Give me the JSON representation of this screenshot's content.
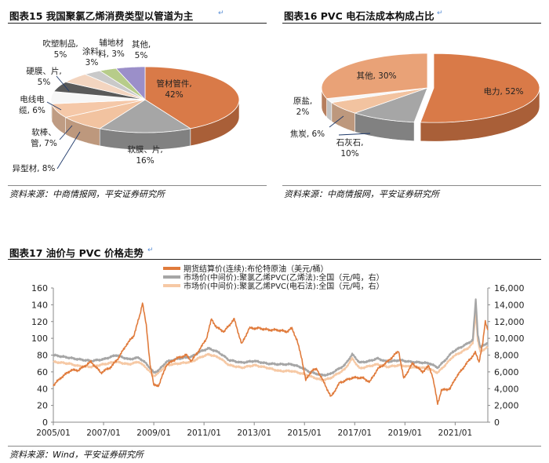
{
  "figure15": {
    "title": "图表15   我国聚氯乙烯消费类型以管道为主",
    "source": "资料来源：中商情报网，平安证券研究所",
    "chart_data": {
      "type": "pie",
      "slices": [
        {
          "name": "管材管件",
          "value": 42,
          "color": "#d97a48",
          "label": [
            "管材管件,",
            "42%"
          ]
        },
        {
          "name": "软膜、片",
          "value": 16,
          "color": "#a6a6a6",
          "label": [
            "软膜、片,",
            "16%"
          ]
        },
        {
          "name": "异型材",
          "value": 8,
          "color": "#f2c3a0",
          "label": [
            "异型材, 8%"
          ]
        },
        {
          "name": "软棒、管",
          "value": 7,
          "color": "#f5c8a8",
          "label": [
            "软棒、",
            "管, 7%"
          ]
        },
        {
          "name": "电线电缆",
          "value": 6,
          "color": "#f7f7f7",
          "label": [
            "电线电",
            "缆, 6%"
          ]
        },
        {
          "name": "硬膜、片",
          "value": 5,
          "color": "#5a5a5a",
          "label": [
            "硬膜、片,",
            "5%"
          ]
        },
        {
          "name": "吹塑制品",
          "value": 5,
          "color": "#f3d5c0",
          "label": [
            "吹塑制品,",
            "5%"
          ]
        },
        {
          "name": "涂料",
          "value": 3,
          "color": "#c9c9c9",
          "label": [
            "涂料,",
            "3%"
          ]
        },
        {
          "name": "辅地材料",
          "value": 3,
          "color": "#b7cc8a",
          "label": [
            "辅地材",
            "料, 3%"
          ]
        },
        {
          "name": "其他",
          "value": 5,
          "color": "#9b8fc9",
          "label": [
            "其他,",
            "5%"
          ]
        }
      ]
    }
  },
  "figure16": {
    "title": "图表16   PVC 电石法成本构成占比",
    "source": "资料来源：中商情报网，平安证券研究所",
    "chart_data": {
      "type": "pie",
      "slices": [
        {
          "name": "电力",
          "value": 52,
          "color": "#d97a48",
          "label": [
            "电力, 52%"
          ]
        },
        {
          "name": "石灰石",
          "value": 10,
          "color": "#a6a6a6",
          "label": [
            "石灰石,",
            "10%"
          ]
        },
        {
          "name": "焦炭",
          "value": 6,
          "color": "#f2c3a0",
          "label": [
            "焦炭, 6%"
          ]
        },
        {
          "name": "原盐",
          "value": 2,
          "color": "#f7f7f7",
          "label": [
            "原盐,",
            "2%"
          ]
        },
        {
          "name": "其他",
          "value": 30,
          "color": "#e9a277",
          "label": [
            "其他, 30%"
          ]
        }
      ]
    }
  },
  "figure17": {
    "title": "图表17   油价与 PVC 价格走势",
    "source": "资料来源：Wind，平安证券研究所",
    "chart_data": {
      "type": "line",
      "legend": [
        {
          "name": "期货结算价(连续):布伦特原油（美元/桶）",
          "color": "#e07b3c",
          "axis": "left"
        },
        {
          "name": "市场价(中间价):聚氯乙烯PVC(乙烯法):全国（元/吨，右）",
          "color": "#a6a6a6",
          "axis": "right"
        },
        {
          "name": "市场价(中间价):聚氯乙烯PVC(电石法):全国（元/吨，右）",
          "color": "#f6c9a5",
          "axis": "right"
        }
      ],
      "x_ticks": [
        "2005/01",
        "2007/01",
        "2009/01",
        "2011/01",
        "2013/01",
        "2015/01",
        "2017/01",
        "2019/01",
        "2021/01"
      ],
      "x_range": [
        2005.0,
        2022.3
      ],
      "y_left": {
        "range": [
          0,
          160
        ],
        "ticks": [
          "0",
          "20",
          "40",
          "60",
          "80",
          "100",
          "120",
          "140",
          "160"
        ]
      },
      "y_right": {
        "range": [
          0,
          16000
        ],
        "ticks": [
          "0",
          "2,000",
          "4,000",
          "6,000",
          "8,000",
          "10,000",
          "12,000",
          "14,000",
          "16,000"
        ]
      },
      "series": [
        {
          "name": "布伦特原油",
          "axis": "left",
          "color": "#e07b3c",
          "points": [
            [
              2005.0,
              44
            ],
            [
              2005.3,
              53
            ],
            [
              2005.7,
              62
            ],
            [
              2006.0,
              62
            ],
            [
              2006.5,
              72
            ],
            [
              2006.9,
              59
            ],
            [
              2007.3,
              66
            ],
            [
              2007.6,
              77
            ],
            [
              2007.9,
              92
            ],
            [
              2008.2,
              103
            ],
            [
              2008.45,
              128
            ],
            [
              2008.55,
              143
            ],
            [
              2008.7,
              115
            ],
            [
              2008.85,
              70
            ],
            [
              2009.0,
              44
            ],
            [
              2009.2,
              44
            ],
            [
              2009.5,
              68
            ],
            [
              2009.9,
              76
            ],
            [
              2010.3,
              80
            ],
            [
              2010.5,
              73
            ],
            [
              2010.9,
              90
            ],
            [
              2011.1,
              100
            ],
            [
              2011.3,
              123
            ],
            [
              2011.5,
              113
            ],
            [
              2011.8,
              108
            ],
            [
              2012.2,
              123
            ],
            [
              2012.5,
              93
            ],
            [
              2012.8,
              112
            ],
            [
              2013.2,
              112
            ],
            [
              2013.6,
              110
            ],
            [
              2013.9,
              110
            ],
            [
              2014.3,
              108
            ],
            [
              2014.5,
              112
            ],
            [
              2014.7,
              98
            ],
            [
              2014.9,
              75
            ],
            [
              2015.05,
              50
            ],
            [
              2015.3,
              62
            ],
            [
              2015.5,
              63
            ],
            [
              2015.8,
              46
            ],
            [
              2016.05,
              30
            ],
            [
              2016.4,
              47
            ],
            [
              2016.9,
              53
            ],
            [
              2017.3,
              53
            ],
            [
              2017.6,
              48
            ],
            [
              2017.9,
              63
            ],
            [
              2018.3,
              72
            ],
            [
              2018.75,
              85
            ],
            [
              2018.95,
              52
            ],
            [
              2019.3,
              70
            ],
            [
              2019.7,
              60
            ],
            [
              2019.95,
              67
            ],
            [
              2020.1,
              55
            ],
            [
              2020.3,
              22
            ],
            [
              2020.45,
              38
            ],
            [
              2020.8,
              40
            ],
            [
              2021.0,
              52
            ],
            [
              2021.4,
              68
            ],
            [
              2021.8,
              83
            ],
            [
              2021.95,
              72
            ],
            [
              2022.1,
              95
            ],
            [
              2022.2,
              120
            ],
            [
              2022.3,
              110
            ]
          ]
        },
        {
          "name": "PVC乙烯法",
          "axis": "right",
          "color": "#a6a6a6",
          "points": [
            [
              2005.0,
              8000
            ],
            [
              2005.6,
              7700
            ],
            [
              2006.0,
              7500
            ],
            [
              2006.5,
              7300
            ],
            [
              2007.0,
              7500
            ],
            [
              2007.5,
              8000
            ],
            [
              2008.0,
              7500
            ],
            [
              2008.4,
              7700
            ],
            [
              2008.7,
              7000
            ],
            [
              2009.0,
              5900
            ],
            [
              2009.2,
              6200
            ],
            [
              2009.5,
              7200
            ],
            [
              2010.0,
              7600
            ],
            [
              2010.5,
              7800
            ],
            [
              2010.9,
              8500
            ],
            [
              2011.2,
              8800
            ],
            [
              2011.6,
              8300
            ],
            [
              2012.0,
              7400
            ],
            [
              2012.5,
              7100
            ],
            [
              2013.0,
              7300
            ],
            [
              2013.5,
              7000
            ],
            [
              2014.0,
              6900
            ],
            [
              2014.5,
              6900
            ],
            [
              2014.9,
              6500
            ],
            [
              2015.2,
              6000
            ],
            [
              2015.7,
              5600
            ],
            [
              2016.0,
              5700
            ],
            [
              2016.6,
              6800
            ],
            [
              2016.9,
              8100
            ],
            [
              2017.2,
              7100
            ],
            [
              2017.6,
              7300
            ],
            [
              2017.9,
              7600
            ],
            [
              2018.3,
              7200
            ],
            [
              2018.8,
              7400
            ],
            [
              2019.2,
              7200
            ],
            [
              2019.7,
              7100
            ],
            [
              2020.0,
              7000
            ],
            [
              2020.3,
              6500
            ],
            [
              2020.6,
              7400
            ],
            [
              2020.9,
              8400
            ],
            [
              2021.2,
              8900
            ],
            [
              2021.5,
              9400
            ],
            [
              2021.7,
              9800
            ],
            [
              2021.82,
              14700
            ],
            [
              2021.9,
              10500
            ],
            [
              2022.0,
              8900
            ],
            [
              2022.15,
              9200
            ],
            [
              2022.3,
              9500
            ]
          ]
        },
        {
          "name": "PVC电石法",
          "axis": "right",
          "color": "#f6c9a5",
          "points": [
            [
              2005.0,
              7200
            ],
            [
              2005.6,
              7000
            ],
            [
              2006.0,
              6700
            ],
            [
              2006.5,
              6600
            ],
            [
              2007.0,
              6900
            ],
            [
              2007.5,
              7200
            ],
            [
              2008.0,
              6900
            ],
            [
              2008.4,
              7200
            ],
            [
              2008.7,
              6500
            ],
            [
              2009.0,
              5500
            ],
            [
              2009.2,
              5900
            ],
            [
              2009.5,
              6800
            ],
            [
              2010.0,
              7000
            ],
            [
              2010.5,
              7200
            ],
            [
              2010.9,
              7800
            ],
            [
              2011.2,
              8100
            ],
            [
              2011.6,
              7700
            ],
            [
              2012.0,
              6800
            ],
            [
              2012.5,
              6500
            ],
            [
              2013.0,
              6800
            ],
            [
              2013.5,
              6500
            ],
            [
              2014.0,
              6100
            ],
            [
              2014.5,
              6100
            ],
            [
              2014.9,
              5800
            ],
            [
              2015.2,
              5500
            ],
            [
              2015.7,
              5000
            ],
            [
              2016.0,
              5200
            ],
            [
              2016.6,
              6300
            ],
            [
              2016.9,
              7600
            ],
            [
              2017.2,
              6400
            ],
            [
              2017.6,
              6700
            ],
            [
              2017.9,
              6900
            ],
            [
              2018.3,
              6600
            ],
            [
              2018.8,
              6800
            ],
            [
              2019.2,
              6600
            ],
            [
              2019.7,
              6500
            ],
            [
              2020.0,
              6300
            ],
            [
              2020.3,
              5900
            ],
            [
              2020.6,
              6800
            ],
            [
              2020.9,
              7800
            ],
            [
              2021.2,
              8300
            ],
            [
              2021.5,
              8800
            ],
            [
              2021.7,
              9400
            ],
            [
              2021.82,
              13200
            ],
            [
              2021.9,
              9800
            ],
            [
              2022.0,
              8300
            ],
            [
              2022.15,
              8700
            ],
            [
              2022.3,
              9000
            ]
          ]
        }
      ]
    }
  }
}
